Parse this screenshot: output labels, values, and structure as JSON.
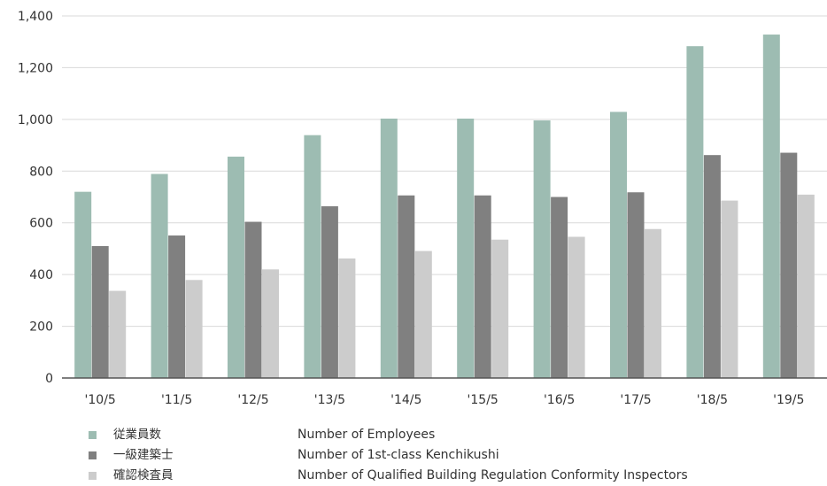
{
  "chart_data": {
    "type": "bar",
    "categories": [
      "'10/5",
      "'11/5",
      "'12/5",
      "'13/5",
      "'14/5",
      "'15/5",
      "'16/5",
      "'17/5",
      "'18/5",
      "'19/5"
    ],
    "series": [
      {
        "name": "従業員数",
        "name_en": "Number of Employees",
        "color": "#9dbcb2",
        "values": [
          720,
          789,
          856,
          939,
          1003,
          1003,
          996,
          1029,
          1283,
          1328
        ]
      },
      {
        "name": "一級建築士",
        "name_en": "Number of 1st-class Kenchikushi",
        "color": "#808080",
        "values": [
          510,
          551,
          604,
          664,
          706,
          706,
          700,
          718,
          862,
          871
        ]
      },
      {
        "name": "確認検査員",
        "name_en": "Number of Qualified Building Regulation Conformity Inspectors",
        "color": "#cccccc",
        "values": [
          337,
          379,
          420,
          462,
          491,
          535,
          546,
          576,
          686,
          709
        ]
      }
    ],
    "ylim": [
      0,
      1400
    ],
    "yticks": [
      0,
      200,
      400,
      600,
      800,
      1000,
      1200,
      1400
    ],
    "ytick_labels": [
      "0",
      "200",
      "400",
      "600",
      "800",
      "1,000",
      "1,200",
      "1,400"
    ],
    "grid": true,
    "legend_position": "bottom-left",
    "title": "",
    "xlabel": "",
    "ylabel": ""
  }
}
